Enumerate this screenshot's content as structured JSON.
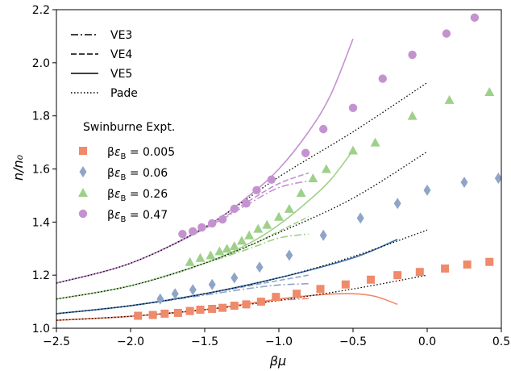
{
  "chart_data": {
    "type": "scatter",
    "xlabel": "βμ",
    "ylabel": "n/n₀",
    "xlim": [
      -2.5,
      0.5
    ],
    "ylim": [
      1.0,
      2.2
    ],
    "xticks": [
      "−2.5",
      "−2.0",
      "−1.5",
      "−1.0",
      "−0.5",
      "0.0",
      "0.5"
    ],
    "yticks": [
      "1.0",
      "1.2",
      "1.4",
      "1.6",
      "1.8",
      "2.0",
      "2.2"
    ],
    "grid": false,
    "legend_position": "top-left",
    "line_legend": [
      {
        "label": "VE3",
        "style": "dashdot"
      },
      {
        "label": "VE4",
        "style": "dashed"
      },
      {
        "label": "VE5",
        "style": "solid"
      },
      {
        "label": "Pade",
        "style": "dotted"
      }
    ],
    "marker_legend_title": "Swinburne Expt.",
    "experimental_series": [
      {
        "name": "βε_B = 0.005",
        "name_html": "β<tspan font-style=\"italic\">ε</tspan><tspan font-size=\"10\" dy=\"4\">B</tspan><tspan dy=\"-4\"> = 0.005</tspan>",
        "marker": "square",
        "color": "#ef8a6a",
        "x": [
          -1.95,
          -1.85,
          -1.77,
          -1.68,
          -1.6,
          -1.53,
          -1.45,
          -1.38,
          -1.3,
          -1.22,
          -1.12,
          -1.02,
          -0.88,
          -0.72,
          -0.55,
          -0.38,
          -0.2,
          -0.05,
          0.12,
          0.27,
          0.42
        ],
        "y": [
          1.047,
          1.05,
          1.055,
          1.058,
          1.065,
          1.07,
          1.073,
          1.077,
          1.085,
          1.09,
          1.1,
          1.118,
          1.13,
          1.148,
          1.165,
          1.183,
          1.2,
          1.212,
          1.225,
          1.24,
          1.25
        ]
      },
      {
        "name": "βε_B = 0.06",
        "name_html": "β<tspan font-style=\"italic\">ε</tspan><tspan font-size=\"10\" dy=\"4\">B</tspan><tspan dy=\"-4\"> = 0.06</tspan>",
        "marker": "diamond",
        "color": "#8fa5c8",
        "x": [
          -1.8,
          -1.7,
          -1.58,
          -1.45,
          -1.3,
          -1.13,
          -0.93,
          -0.7,
          -0.45,
          -0.2,
          0.0,
          0.25,
          0.48
        ],
        "y": [
          1.11,
          1.13,
          1.145,
          1.165,
          1.19,
          1.23,
          1.275,
          1.35,
          1.415,
          1.47,
          1.52,
          1.55,
          1.565
        ]
      },
      {
        "name": "βε_B = 0.26",
        "name_html": "β<tspan font-style=\"italic\">ε</tspan><tspan font-size=\"10\" dy=\"4\">B</tspan><tspan dy=\"-4\"> = 0.26</tspan>",
        "marker": "triangle",
        "color": "#9fd08a",
        "x": [
          -1.6,
          -1.53,
          -1.46,
          -1.4,
          -1.35,
          -1.3,
          -1.25,
          -1.2,
          -1.14,
          -1.08,
          -1.0,
          -0.93,
          -0.85,
          -0.77,
          -0.68,
          -0.5,
          -0.35,
          -0.1,
          0.15,
          0.42
        ],
        "y": [
          1.25,
          1.265,
          1.275,
          1.29,
          1.3,
          1.31,
          1.33,
          1.35,
          1.375,
          1.39,
          1.42,
          1.45,
          1.51,
          1.565,
          1.6,
          1.67,
          1.7,
          1.8,
          1.86,
          1.89
        ]
      },
      {
        "name": "βε_B = 0.47",
        "name_html": "β<tspan font-style=\"italic\">ε</tspan><tspan font-size=\"10\" dy=\"4\">B</tspan><tspan dy=\"-4\"> = 0.47</tspan>",
        "marker": "circle",
        "color": "#c493cf",
        "x": [
          -1.65,
          -1.58,
          -1.52,
          -1.45,
          -1.38,
          -1.3,
          -1.22,
          -1.15,
          -1.05,
          -0.82,
          -0.7,
          -0.5,
          -0.3,
          -0.1,
          0.13,
          0.32
        ],
        "y": [
          1.355,
          1.365,
          1.38,
          1.395,
          1.41,
          1.45,
          1.47,
          1.52,
          1.56,
          1.66,
          1.75,
          1.83,
          1.94,
          2.03,
          2.11,
          2.17
        ]
      }
    ],
    "theory_curves": [
      {
        "group": "0.005",
        "model": "VE3",
        "style": "dashdot",
        "color": "#ef8a6a",
        "x": [
          -2.5,
          -2.0,
          -1.5,
          -1.2,
          -1.0,
          -0.8
        ],
        "y": [
          1.03,
          1.045,
          1.07,
          1.092,
          1.105,
          1.112
        ]
      },
      {
        "group": "0.005",
        "model": "VE4",
        "style": "dashed",
        "color": "#ef8a6a",
        "x": [
          -2.5,
          -2.0,
          -1.5,
          -1.2,
          -1.0,
          -0.8
        ],
        "y": [
          1.03,
          1.045,
          1.07,
          1.093,
          1.11,
          1.123
        ]
      },
      {
        "group": "0.005",
        "model": "VE5",
        "style": "solid",
        "color": "#ef8a6a",
        "x": [
          -2.5,
          -2.0,
          -1.5,
          -1.0,
          -0.7,
          -0.5,
          -0.35,
          -0.2
        ],
        "y": [
          1.03,
          1.045,
          1.07,
          1.11,
          1.127,
          1.13,
          1.12,
          1.09
        ]
      },
      {
        "group": "0.005",
        "model": "Pade",
        "style": "dotted",
        "color": "#000000",
        "x": [
          -2.5,
          -2.0,
          -1.5,
          -1.0,
          -0.5,
          0.0
        ],
        "y": [
          1.03,
          1.045,
          1.07,
          1.105,
          1.148,
          1.2
        ]
      },
      {
        "group": "0.06",
        "model": "VE3",
        "style": "dashdot",
        "color": "#8fa5c8",
        "x": [
          -2.5,
          -2.0,
          -1.5,
          -1.2,
          -1.0,
          -0.8
        ],
        "y": [
          1.055,
          1.085,
          1.125,
          1.15,
          1.163,
          1.168
        ]
      },
      {
        "group": "0.06",
        "model": "VE4",
        "style": "dashed",
        "color": "#8fa5c8",
        "x": [
          -2.5,
          -2.0,
          -1.5,
          -1.2,
          -1.0,
          -0.8
        ],
        "y": [
          1.055,
          1.085,
          1.13,
          1.16,
          1.18,
          1.2
        ]
      },
      {
        "group": "0.06",
        "model": "VE5",
        "style": "solid",
        "color": "#3b6fa8",
        "x": [
          -2.5,
          -2.0,
          -1.5,
          -1.0,
          -0.5,
          -0.2
        ],
        "y": [
          1.055,
          1.085,
          1.13,
          1.19,
          1.265,
          1.335
        ]
      },
      {
        "group": "0.06",
        "model": "Pade",
        "style": "dotted",
        "color": "#000000",
        "x": [
          -2.5,
          -2.0,
          -1.5,
          -1.0,
          -0.5,
          0.0
        ],
        "y": [
          1.055,
          1.085,
          1.13,
          1.19,
          1.27,
          1.37
        ]
      },
      {
        "group": "0.26",
        "model": "VE3",
        "style": "dashdot",
        "color": "#9fd08a",
        "x": [
          -2.5,
          -2.0,
          -1.5,
          -1.2,
          -1.0,
          -0.8
        ],
        "y": [
          1.11,
          1.16,
          1.245,
          1.3,
          1.34,
          1.355
        ]
      },
      {
        "group": "0.26",
        "model": "VE4",
        "style": "dashed",
        "color": "#9fd08a",
        "x": [
          -2.5,
          -2.0,
          -1.5,
          -1.2,
          -1.0,
          -0.8
        ],
        "y": [
          1.11,
          1.16,
          1.245,
          1.31,
          1.365,
          1.42
        ]
      },
      {
        "group": "0.26",
        "model": "VE5",
        "style": "solid",
        "color": "#9fd08a",
        "x": [
          -2.5,
          -2.0,
          -1.5,
          -1.2,
          -1.0,
          -0.8,
          -0.65,
          -0.5
        ],
        "y": [
          1.11,
          1.16,
          1.245,
          1.32,
          1.39,
          1.48,
          1.56,
          1.67
        ]
      },
      {
        "group": "0.26",
        "model": "Pade",
        "style": "dotted",
        "color": "#000000",
        "x": [
          -2.5,
          -2.0,
          -1.5,
          -1.0,
          -0.5,
          0.0
        ],
        "y": [
          1.11,
          1.16,
          1.245,
          1.36,
          1.49,
          1.665
        ]
      },
      {
        "group": "0.47",
        "model": "VE3",
        "style": "dashdot",
        "color": "#c493cf",
        "x": [
          -2.5,
          -2.0,
          -1.5,
          -1.2,
          -1.0,
          -0.8
        ],
        "y": [
          1.17,
          1.245,
          1.375,
          1.47,
          1.53,
          1.555
        ]
      },
      {
        "group": "0.47",
        "model": "VE4",
        "style": "dashed",
        "color": "#c493cf",
        "x": [
          -2.5,
          -2.0,
          -1.5,
          -1.2,
          -1.0,
          -0.8
        ],
        "y": [
          1.17,
          1.245,
          1.375,
          1.48,
          1.545,
          1.585
        ]
      },
      {
        "group": "0.47",
        "model": "VE5",
        "style": "solid",
        "color": "#c493cf",
        "x": [
          -2.5,
          -2.0,
          -1.5,
          -1.2,
          -1.0,
          -0.8,
          -0.65,
          -0.5
        ],
        "y": [
          1.17,
          1.245,
          1.38,
          1.5,
          1.6,
          1.74,
          1.88,
          2.09
        ]
      },
      {
        "group": "0.47",
        "model": "Pade",
        "style": "dotted",
        "color": "#000000",
        "x": [
          -2.5,
          -2.0,
          -1.5,
          -1.0,
          -0.5,
          0.0
        ],
        "y": [
          1.17,
          1.245,
          1.38,
          1.57,
          1.74,
          1.925
        ]
      }
    ]
  }
}
